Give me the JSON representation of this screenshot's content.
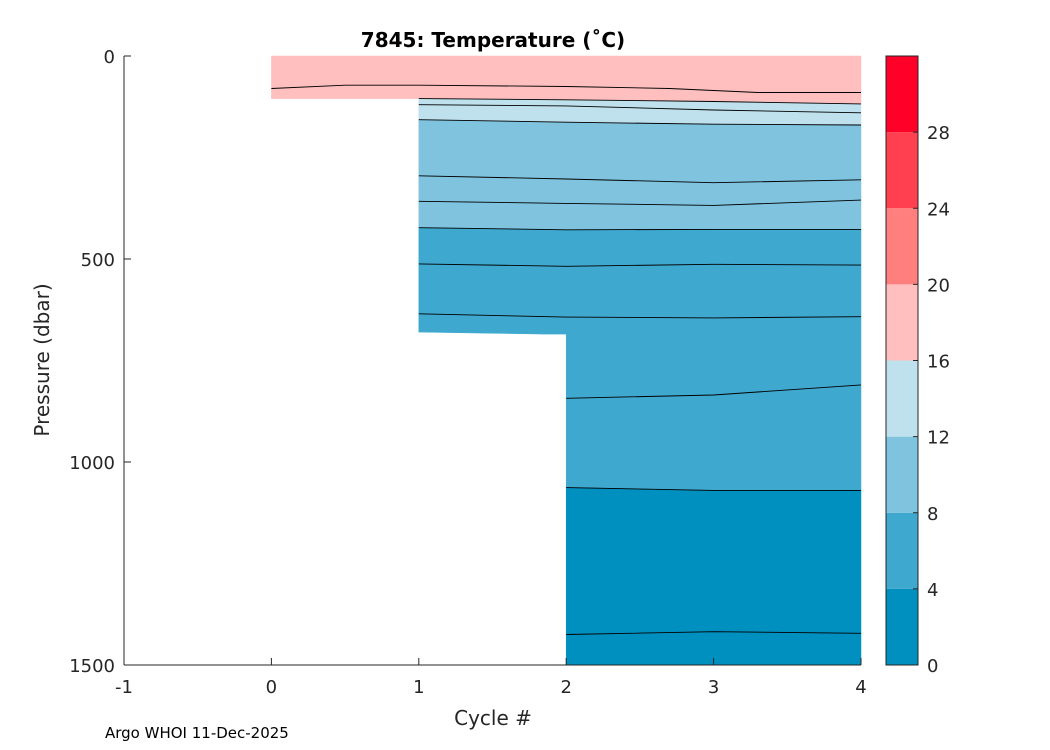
{
  "chart_data": {
    "type": "heatmap",
    "subtype": "filled-contour",
    "title": "7845:  Temperature (˚C)",
    "xlabel": "Cycle #",
    "ylabel": "Pressure (dbar)",
    "xlim": [
      -1,
      4
    ],
    "ylim": [
      1500,
      0
    ],
    "y_reversed": true,
    "xticks": [
      -1,
      0,
      1,
      2,
      3,
      4
    ],
    "yticks": [
      0,
      500,
      1000,
      1500
    ],
    "colorbar": {
      "levels": [
        0,
        4,
        8,
        12,
        16,
        20,
        24,
        28,
        32
      ],
      "tick_labels": [
        0,
        4,
        8,
        12,
        16,
        20,
        24,
        28
      ],
      "colors": [
        "#0090bf",
        "#3fa8cf",
        "#7fc3de",
        "#bfe1ed",
        "#ffbfbf",
        "#ff7f7f",
        "#ff4050",
        "#ff0028"
      ]
    },
    "data_coverage": [
      {
        "cycle_from": 0,
        "cycle_to": 1,
        "max_pressure": 105
      },
      {
        "cycle_from": 1,
        "cycle_to": 2,
        "max_pressure": 685
      },
      {
        "cycle_from": 2,
        "cycle_to": 4,
        "max_pressure": 1500
      }
    ],
    "contours": [
      {
        "label": "16-12",
        "points": [
          [
            1,
            105
          ],
          [
            2,
            108
          ],
          [
            3,
            112
          ],
          [
            4,
            118
          ]
        ]
      },
      {
        "label": "sub-12",
        "points": [
          [
            1,
            120
          ],
          [
            2,
            123
          ],
          [
            3,
            133
          ],
          [
            4,
            140
          ]
        ]
      },
      {
        "label": "12-8",
        "points": [
          [
            1,
            157
          ],
          [
            2,
            163
          ],
          [
            3,
            168
          ],
          [
            4,
            170
          ]
        ]
      },
      {
        "label": "sub-8a",
        "points": [
          [
            1,
            295
          ],
          [
            2,
            303
          ],
          [
            3,
            312
          ],
          [
            4,
            305
          ]
        ]
      },
      {
        "label": "sub-8b",
        "points": [
          [
            1,
            358
          ],
          [
            2,
            363
          ],
          [
            3,
            368
          ],
          [
            4,
            355
          ]
        ]
      },
      {
        "label": "8-4",
        "points": [
          [
            1,
            423
          ],
          [
            2,
            428
          ],
          [
            3,
            427
          ],
          [
            4,
            427
          ]
        ]
      },
      {
        "label": "sub-4a",
        "points": [
          [
            1,
            512
          ],
          [
            2,
            518
          ],
          [
            3,
            513
          ],
          [
            4,
            515
          ]
        ]
      },
      {
        "label": "sub-4b",
        "points": [
          [
            1,
            635
          ],
          [
            2,
            643
          ],
          [
            3,
            645
          ],
          [
            4,
            642
          ]
        ]
      },
      {
        "label": "sub-4c",
        "points": [
          [
            2,
            843
          ],
          [
            3,
            835
          ],
          [
            4,
            810
          ]
        ]
      },
      {
        "label": "4-0",
        "points": [
          [
            2,
            1063
          ],
          [
            3,
            1070
          ],
          [
            4,
            1070
          ]
        ]
      },
      {
        "label": "sub-0",
        "points": [
          [
            2,
            1425
          ],
          [
            3,
            1418
          ],
          [
            4,
            1422
          ]
        ]
      }
    ],
    "surface_contour": {
      "label": "sub-20",
      "points": [
        [
          0,
          80
        ],
        [
          0.5,
          72
        ],
        [
          1,
          72
        ],
        [
          2,
          75
        ],
        [
          2.7,
          80
        ],
        [
          3,
          85
        ],
        [
          3.3,
          90
        ],
        [
          4,
          90
        ]
      ]
    }
  },
  "footer": "Argo WHOI 11-Dec-2025"
}
